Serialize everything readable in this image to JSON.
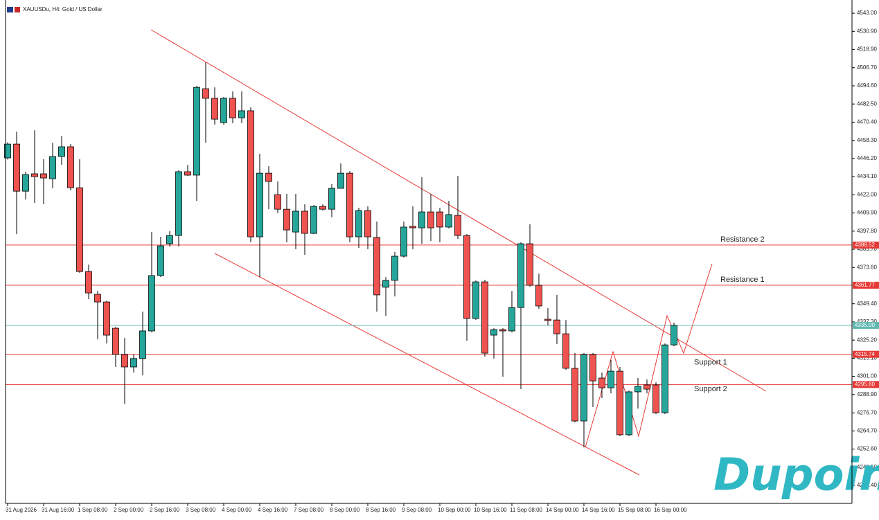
{
  "chart_data": {
    "type": "candlestick",
    "title": "XAUUSDu, H4:  Gold / US Dollar",
    "watermark": "Dupoin",
    "categories": [
      "31 Aug 2026",
      null,
      null,
      null,
      "31 Aug 16:00",
      null,
      null,
      null,
      "1 Sep 08:00",
      null,
      null,
      null,
      "2 Sep 00:00",
      null,
      null,
      null,
      "2 Sep 16:00",
      null,
      null,
      null,
      "3 Sep 08:00",
      null,
      null,
      null,
      "4 Sep 00:00",
      null,
      null,
      null,
      "4 Sep 16:00",
      null,
      null,
      null,
      "7 Sep 08:00",
      null,
      null,
      null,
      "8 Sep 00:00",
      null,
      null,
      null,
      "8 Sep 16:00",
      null,
      null,
      null,
      "9 Sep 08:00",
      null,
      null,
      null,
      "10 Sep 00:00",
      null,
      null,
      null,
      "10 Sep 16:00",
      null,
      null,
      null,
      "11 Sep 08:00",
      null,
      null,
      null,
      "14 Sep 00:00",
      null,
      null,
      null,
      "14 Sep 16:00",
      null,
      null,
      null,
      "15 Sep 08:00",
      null,
      null,
      null,
      "16 Sep 00:00",
      null,
      null
    ],
    "open": [
      4446.6,
      4455.8,
      4424.4,
      4436.0,
      4436.0,
      4432.7,
      4447.5,
      4454.0,
      4426.7,
      4370.9,
      4355.7,
      4350.6,
      4333.1,
      4315.6,
      4307.3,
      4312.9,
      4331.3,
      4368.2,
      4389.4,
      4394.9,
      4437.4,
      4435.1,
      4492.7,
      4486.3,
      4470.1,
      4486.3,
      4473.3,
      4478.0,
      4394.0,
      4436.4,
      4422.1,
      4412.4,
      4397.2,
      4411.1,
      4396.3,
      4414.3,
      4412.4,
      4426.3,
      4436.4,
      4394.0,
      4411.5,
      4393.6,
      4360.4,
      4365.0,
      4381.1,
      4401.0,
      4400.0,
      4410.6,
      4410.6,
      4400.5,
      4408.3,
      4394.9,
      4339.6,
      4364.0,
      4328.5,
      4332.2,
      4331.3,
      4346.9,
      4389.4,
      4361.7,
      4339.1,
      4338.6,
      4329.4,
      4306.4,
      4271.3,
      4315.6,
      4299.9,
      4293.4,
      4304.5,
      4262.1,
      4290.7,
      4295.3,
      4295.3,
      4276.8,
      4322.0
    ],
    "high": [
      4457.0,
      4464.1,
      4437.4,
      4465.0,
      4445.7,
      4456.7,
      4461.3,
      4455.8,
      4445.7,
      4375.5,
      4358.0,
      4351.5,
      4334.0,
      4326.6,
      4315.6,
      4344.2,
      4397.2,
      4394.0,
      4397.7,
      4438.3,
      4442.0,
      4494.6,
      4510.2,
      4493.6,
      4487.2,
      4490.9,
      4490.9,
      4480.3,
      4449.4,
      4441.1,
      4430.9,
      4422.6,
      4422.6,
      4415.7,
      4415.2,
      4415.7,
      4429.1,
      4442.9,
      4437.8,
      4413.4,
      4414.3,
      4404.2,
      4367.2,
      4383.9,
      4404.2,
      4414.3,
      4433.7,
      4422.6,
      4413.4,
      4418.0,
      4434.6,
      4395.8,
      4364.9,
      4365.4,
      4333.1,
      4333.1,
      4358.0,
      4390.3,
      4402.3,
      4369.5,
      4346.5,
      4355.3,
      4338.6,
      4316.5,
      4316.5,
      4316.5,
      4303.6,
      4311.9,
      4307.3,
      4291.6,
      4299.9,
      4298.9,
      4297.1,
      4323.0,
      4336.8
    ],
    "low": [
      4445.5,
      4395.8,
      4418.9,
      4416.6,
      4415.7,
      4426.3,
      4442.0,
      4424.9,
      4370.0,
      4352.5,
      4325.7,
      4323.0,
      4307.3,
      4282.8,
      4303.6,
      4301.7,
      4330.4,
      4367.2,
      4387.5,
      4387.5,
      4434.6,
      4418.0,
      4456.7,
      4468.7,
      4468.7,
      4469.7,
      4469.7,
      4390.3,
      4367.2,
      4412.4,
      4409.7,
      4390.3,
      4385.7,
      4382.0,
      4395.8,
      4411.5,
      4407.0,
      4426.3,
      4390.3,
      4386.6,
      4385.7,
      4344.2,
      4341.4,
      4354.3,
      4380.2,
      4385.7,
      4389.4,
      4391.2,
      4390.3,
      4399.6,
      4392.6,
      4324.8,
      4338.6,
      4314.2,
      4312.9,
      4300.8,
      4330.4,
      4292.5,
      4360.8,
      4346.0,
      4335.0,
      4322.5,
      4305.4,
      4270.4,
      4253.8,
      4280.5,
      4286.5,
      4289.7,
      4261.2,
      4261.2,
      4279.6,
      4289.7,
      4275.9,
      4275.9,
      4321.1
    ],
    "close": [
      4455.8,
      4424.4,
      4435.5,
      4434.1,
      4433.2,
      4447.5,
      4454.0,
      4426.7,
      4370.9,
      4356.6,
      4350.6,
      4328.5,
      4315.6,
      4307.3,
      4312.9,
      4331.3,
      4368.2,
      4388.0,
      4394.9,
      4437.4,
      4435.1,
      4493.6,
      4486.3,
      4472.4,
      4486.3,
      4473.3,
      4478.0,
      4394.0,
      4436.4,
      4430.9,
      4412.4,
      4398.6,
      4411.1,
      4396.3,
      4414.3,
      4412.4,
      4426.3,
      4436.4,
      4394.0,
      4411.5,
      4394.0,
      4355.3,
      4365.0,
      4381.1,
      4400.5,
      4400.0,
      4410.6,
      4400.0,
      4400.5,
      4408.8,
      4394.9,
      4339.6,
      4364.0,
      4316.5,
      4332.2,
      4331.3,
      4346.9,
      4389.4,
      4361.7,
      4347.9,
      4338.2,
      4329.4,
      4306.4,
      4271.3,
      4315.6,
      4298.0,
      4293.4,
      4304.5,
      4262.1,
      4290.7,
      4294.4,
      4292.5,
      4276.8,
      4322.0,
      4335.0
    ],
    "up_color": "#26a69a",
    "down_color": "#ef5350",
    "ylim": [
      4216.4,
      4551.8
    ],
    "yticks": [
      {
        "value": 4543.0,
        "label": "4543.00"
      },
      {
        "value": 4530.9,
        "label": "4530.90"
      },
      {
        "value": 4518.9,
        "label": "4518.90"
      },
      {
        "value": 4506.7,
        "label": "4506.70"
      },
      {
        "value": 4494.6,
        "label": "4494.60"
      },
      {
        "value": 4482.5,
        "label": "4482.50"
      },
      {
        "value": 4470.4,
        "label": "4470.40"
      },
      {
        "value": 4458.3,
        "label": "4458.30"
      },
      {
        "value": 4446.2,
        "label": "4446.20"
      },
      {
        "value": 4434.1,
        "label": "4434.10"
      },
      {
        "value": 4422.0,
        "label": "4422.00"
      },
      {
        "value": 4409.9,
        "label": "4409.90"
      },
      {
        "value": 4397.8,
        "label": "4397.80"
      },
      {
        "value": 4385.7,
        "label": "4385.70"
      },
      {
        "value": 4373.6,
        "label": "4373.60"
      },
      {
        "value": 4349.4,
        "label": "4349.40"
      },
      {
        "value": 4337.3,
        "label": "4337.30"
      },
      {
        "value": 4325.2,
        "label": "4325.20"
      },
      {
        "value": 4313.1,
        "label": "4313.10"
      },
      {
        "value": 4301.0,
        "label": "4301.00"
      },
      {
        "value": 4288.9,
        "label": "4288.90"
      },
      {
        "value": 4276.7,
        "label": "4276.70"
      },
      {
        "value": 4264.7,
        "label": "4264.70"
      },
      {
        "value": 4252.6,
        "label": "4252.60"
      },
      {
        "value": 4240.5,
        "label": "4240.50"
      },
      {
        "value": 4228.4,
        "label": "4228.40"
      }
    ],
    "levels": [
      {
        "value": 4388.52,
        "label": "4388.52",
        "name": "Resistance 2",
        "color": "#e53935"
      },
      {
        "value": 4361.77,
        "label": "4361.77",
        "name": "Resistance 1",
        "color": "#e53935"
      },
      {
        "value": 4335.0,
        "label": "4335.00",
        "color": "#5fb8b0"
      },
      {
        "value": 4315.74,
        "label": "4315.74",
        "name": "Support 1",
        "color": "#e53935"
      },
      {
        "value": 4295.6,
        "label": "4295.60",
        "name": "Support 2",
        "color": "#e53935"
      }
    ]
  }
}
